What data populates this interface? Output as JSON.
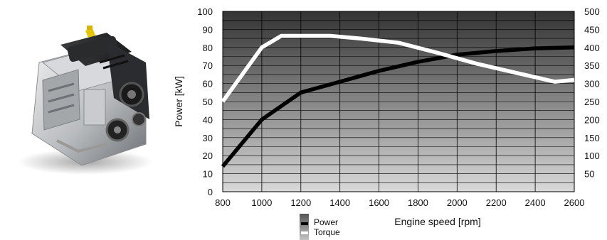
{
  "image": {
    "subject": "engine-photo"
  },
  "chart_data": {
    "type": "line",
    "title": "",
    "xlabel": "Engine speed [rpm]",
    "ylabel": "Power [kW]",
    "y2label": "",
    "xlim": [
      800,
      2600
    ],
    "ylim": [
      0,
      100
    ],
    "y2lim": [
      0,
      500
    ],
    "x_ticks": [
      800,
      1000,
      1200,
      1400,
      1600,
      1800,
      2000,
      2200,
      2400,
      2600
    ],
    "y_ticks": [
      0,
      10,
      20,
      30,
      40,
      50,
      60,
      70,
      80,
      90,
      100
    ],
    "y2_ticks": [
      50,
      100,
      150,
      200,
      250,
      300,
      350,
      400,
      450,
      500
    ],
    "grid": true,
    "legend_position": "bottom",
    "series": [
      {
        "name": "Power",
        "axis": "left",
        "color": "#000000",
        "x": [
          800,
          1000,
          1200,
          1400,
          1600,
          1800,
          2000,
          2200,
          2400,
          2600
        ],
        "values": [
          14,
          40,
          55,
          61,
          67,
          72,
          76,
          78,
          79.5,
          80
        ]
      },
      {
        "name": "Torque",
        "axis": "right",
        "color": "#ffffff",
        "x": [
          800,
          1000,
          1100,
          1200,
          1350,
          1500,
          1700,
          1900,
          2100,
          2300,
          2500,
          2600
        ],
        "values": [
          250,
          400,
          432,
          432,
          432,
          425,
          413,
          385,
          355,
          330,
          305,
          310
        ]
      }
    ]
  }
}
